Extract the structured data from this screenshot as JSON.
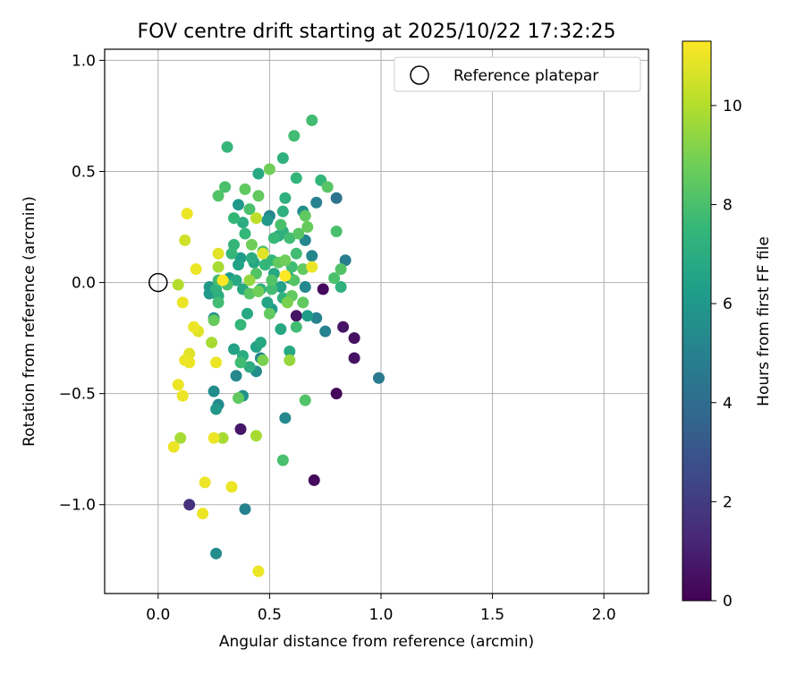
{
  "chart_data": {
    "type": "scatter",
    "title": "FOV centre drift starting at 2025/10/22 17:32:25",
    "xlabel": "Angular distance from reference (arcmin)",
    "ylabel": "Rotation from reference (arcmin)",
    "xlim": [
      -0.24,
      2.2
    ],
    "ylim": [
      -1.4,
      1.05
    ],
    "xticks": [
      0.0,
      0.5,
      1.0,
      1.5,
      2.0
    ],
    "xtick_labels": [
      "0.0",
      "0.5",
      "1.0",
      "1.5",
      "2.0"
    ],
    "yticks": [
      1.0,
      0.5,
      0.0,
      -0.5,
      -1.0
    ],
    "ytick_labels": [
      "1.0",
      "0.5",
      "0.0",
      "−0.5",
      "−1.0"
    ],
    "grid": true,
    "legend": {
      "placement": "top-right",
      "label": "Reference platepar"
    },
    "reference_point": {
      "x": 0.0,
      "y": 0.0
    },
    "colorbar": {
      "label": "Hours from first FF file",
      "min": 0,
      "max": 11.3,
      "ticks": [
        0,
        2,
        4,
        6,
        8,
        10
      ],
      "tick_labels": [
        "0",
        "2",
        "4",
        "6",
        "8",
        "10"
      ],
      "colormap": [
        "#440154",
        "#482878",
        "#3e4989",
        "#31688e",
        "#26828e",
        "#1f9e89",
        "#35b779",
        "#6ece58",
        "#b5de2b",
        "#fde725"
      ]
    },
    "points": [
      {
        "x": 0.69,
        "y": 0.73,
        "h": 7.8
      },
      {
        "x": 0.31,
        "y": 0.61,
        "h": 7.5
      },
      {
        "x": 0.61,
        "y": 0.66,
        "h": 7.8
      },
      {
        "x": 0.56,
        "y": 0.56,
        "h": 7.2
      },
      {
        "x": 0.45,
        "y": 0.49,
        "h": 6.8
      },
      {
        "x": 0.5,
        "y": 0.51,
        "h": 8.8
      },
      {
        "x": 0.62,
        "y": 0.47,
        "h": 7.4
      },
      {
        "x": 0.3,
        "y": 0.43,
        "h": 8.0
      },
      {
        "x": 0.27,
        "y": 0.39,
        "h": 8.2
      },
      {
        "x": 0.39,
        "y": 0.42,
        "h": 8.5
      },
      {
        "x": 0.45,
        "y": 0.39,
        "h": 8.5
      },
      {
        "x": 0.57,
        "y": 0.38,
        "h": 7.2
      },
      {
        "x": 0.73,
        "y": 0.46,
        "h": 7.5
      },
      {
        "x": 0.76,
        "y": 0.43,
        "h": 8.3
      },
      {
        "x": 0.8,
        "y": 0.38,
        "h": 4.3
      },
      {
        "x": 0.71,
        "y": 0.36,
        "h": 5.0
      },
      {
        "x": 0.36,
        "y": 0.35,
        "h": 6.0
      },
      {
        "x": 0.41,
        "y": 0.33,
        "h": 8.0
      },
      {
        "x": 0.34,
        "y": 0.29,
        "h": 7.5
      },
      {
        "x": 0.38,
        "y": 0.27,
        "h": 7.0
      },
      {
        "x": 0.44,
        "y": 0.29,
        "h": 10.2
      },
      {
        "x": 0.5,
        "y": 0.3,
        "h": 5.2
      },
      {
        "x": 0.49,
        "y": 0.28,
        "h": 6.0
      },
      {
        "x": 0.56,
        "y": 0.32,
        "h": 7.2
      },
      {
        "x": 0.65,
        "y": 0.32,
        "h": 5.6
      },
      {
        "x": 0.66,
        "y": 0.3,
        "h": 8.5
      },
      {
        "x": 0.55,
        "y": 0.26,
        "h": 8.0
      },
      {
        "x": 0.67,
        "y": 0.25,
        "h": 8.6
      },
      {
        "x": 0.39,
        "y": 0.22,
        "h": 7.5
      },
      {
        "x": 0.34,
        "y": 0.17,
        "h": 7.5
      },
      {
        "x": 0.42,
        "y": 0.17,
        "h": 8.8
      },
      {
        "x": 0.47,
        "y": 0.14,
        "h": 8.0
      },
      {
        "x": 0.56,
        "y": 0.23,
        "h": 7.2
      },
      {
        "x": 0.54,
        "y": 0.21,
        "h": 7.0
      },
      {
        "x": 0.59,
        "y": 0.2,
        "h": 7.8
      },
      {
        "x": 0.63,
        "y": 0.22,
        "h": 8.3
      },
      {
        "x": 0.66,
        "y": 0.19,
        "h": 5.2
      },
      {
        "x": 0.8,
        "y": 0.23,
        "h": 8.0
      },
      {
        "x": 0.33,
        "y": 0.13,
        "h": 7.5
      },
      {
        "x": 0.27,
        "y": 0.13,
        "h": 10.8
      },
      {
        "x": 0.47,
        "y": 0.13,
        "h": 10.8
      },
      {
        "x": 0.62,
        "y": 0.13,
        "h": 7.8
      },
      {
        "x": 0.69,
        "y": 0.12,
        "h": 5.2
      },
      {
        "x": 0.37,
        "y": 0.11,
        "h": 6.2
      },
      {
        "x": 0.42,
        "y": 0.11,
        "h": 7.0
      },
      {
        "x": 0.51,
        "y": 0.1,
        "h": 7.5
      },
      {
        "x": 0.43,
        "y": 0.09,
        "h": 6.8
      },
      {
        "x": 0.54,
        "y": 0.09,
        "h": 8.5
      },
      {
        "x": 0.57,
        "y": 0.1,
        "h": 8.8
      },
      {
        "x": 0.84,
        "y": 0.1,
        "h": 4.8
      },
      {
        "x": 0.27,
        "y": 0.07,
        "h": 9.8
      },
      {
        "x": 0.36,
        "y": 0.08,
        "h": 6.5
      },
      {
        "x": 0.48,
        "y": 0.08,
        "h": 7.5
      },
      {
        "x": 0.6,
        "y": 0.07,
        "h": 7.8
      },
      {
        "x": 0.65,
        "y": 0.06,
        "h": 8.5
      },
      {
        "x": 0.69,
        "y": 0.07,
        "h": 11.0
      },
      {
        "x": 0.82,
        "y": 0.06,
        "h": 8.2
      },
      {
        "x": 0.17,
        "y": 0.06,
        "h": 11.0
      },
      {
        "x": 0.44,
        "y": 0.04,
        "h": 8.2
      },
      {
        "x": 0.52,
        "y": 0.04,
        "h": 6.8
      },
      {
        "x": 0.57,
        "y": 0.03,
        "h": 11.3
      },
      {
        "x": 0.79,
        "y": 0.02,
        "h": 8.0
      },
      {
        "x": 0.29,
        "y": 0.01,
        "h": 11.3
      },
      {
        "x": 0.35,
        "y": 0.01,
        "h": 6.8
      },
      {
        "x": 0.32,
        "y": 0.02,
        "h": 6.2
      },
      {
        "x": 0.41,
        "y": 0.01,
        "h": 9.5
      },
      {
        "x": 0.51,
        "y": 0.01,
        "h": 8.2
      },
      {
        "x": 0.61,
        "y": 0.01,
        "h": 8.2
      },
      {
        "x": 0.09,
        "y": -0.01,
        "h": 10.0
      },
      {
        "x": 0.23,
        "y": -0.02,
        "h": 6.0
      },
      {
        "x": 0.26,
        "y": -0.03,
        "h": 7.2
      },
      {
        "x": 0.31,
        "y": -0.01,
        "h": 8.0
      },
      {
        "x": 0.38,
        "y": -0.03,
        "h": 6.8
      },
      {
        "x": 0.46,
        "y": -0.03,
        "h": 7.2
      },
      {
        "x": 0.51,
        "y": -0.03,
        "h": 7.8
      },
      {
        "x": 0.55,
        "y": -0.02,
        "h": 6.5
      },
      {
        "x": 0.66,
        "y": -0.02,
        "h": 5.3
      },
      {
        "x": 0.74,
        "y": -0.03,
        "h": 0.3
      },
      {
        "x": 0.82,
        "y": -0.02,
        "h": 7.2
      },
      {
        "x": 0.23,
        "y": -0.05,
        "h": 6.0
      },
      {
        "x": 0.27,
        "y": -0.06,
        "h": 7.0
      },
      {
        "x": 0.41,
        "y": -0.05,
        "h": 8.3
      },
      {
        "x": 0.45,
        "y": -0.04,
        "h": 8.8
      },
      {
        "x": 0.56,
        "y": -0.07,
        "h": 7.3
      },
      {
        "x": 0.6,
        "y": -0.06,
        "h": 8.5
      },
      {
        "x": 0.27,
        "y": -0.09,
        "h": 7.8
      },
      {
        "x": 0.49,
        "y": -0.09,
        "h": 6.6
      },
      {
        "x": 0.58,
        "y": -0.09,
        "h": 9.0
      },
      {
        "x": 0.65,
        "y": -0.09,
        "h": 8.5
      },
      {
        "x": 0.11,
        "y": -0.09,
        "h": 11.0
      },
      {
        "x": 0.51,
        "y": -0.12,
        "h": 6.2
      },
      {
        "x": 0.4,
        "y": -0.14,
        "h": 6.8
      },
      {
        "x": 0.5,
        "y": -0.14,
        "h": 8.5
      },
      {
        "x": 0.62,
        "y": -0.15,
        "h": 0.6
      },
      {
        "x": 0.67,
        "y": -0.15,
        "h": 6.2
      },
      {
        "x": 0.71,
        "y": -0.16,
        "h": 5.0
      },
      {
        "x": 0.25,
        "y": -0.16,
        "h": 5.5
      },
      {
        "x": 0.25,
        "y": -0.17,
        "h": 8.6
      },
      {
        "x": 0.37,
        "y": -0.19,
        "h": 7.5
      },
      {
        "x": 0.55,
        "y": -0.21,
        "h": 6.8
      },
      {
        "x": 0.62,
        "y": -0.2,
        "h": 7.8
      },
      {
        "x": 0.75,
        "y": -0.22,
        "h": 5.0
      },
      {
        "x": 0.83,
        "y": -0.2,
        "h": 0.6
      },
      {
        "x": 0.16,
        "y": -0.2,
        "h": 11.0
      },
      {
        "x": 0.18,
        "y": -0.22,
        "h": 10.8
      },
      {
        "x": 0.88,
        "y": -0.25,
        "h": 0.5
      },
      {
        "x": 0.24,
        "y": -0.27,
        "h": 9.8
      },
      {
        "x": 0.46,
        "y": -0.27,
        "h": 6.8
      },
      {
        "x": 0.44,
        "y": -0.29,
        "h": 6.5
      },
      {
        "x": 0.34,
        "y": -0.3,
        "h": 6.5
      },
      {
        "x": 0.59,
        "y": -0.31,
        "h": 6.8
      },
      {
        "x": 0.14,
        "y": -0.32,
        "h": 10.8
      },
      {
        "x": 0.88,
        "y": -0.34,
        "h": 0.5
      },
      {
        "x": 0.38,
        "y": -0.33,
        "h": 7.0
      },
      {
        "x": 0.46,
        "y": -0.34,
        "h": 5.2
      },
      {
        "x": 0.12,
        "y": -0.35,
        "h": 11.0
      },
      {
        "x": 0.26,
        "y": -0.36,
        "h": 11.0
      },
      {
        "x": 0.37,
        "y": -0.36,
        "h": 7.8
      },
      {
        "x": 0.47,
        "y": -0.35,
        "h": 9.0
      },
      {
        "x": 0.59,
        "y": -0.35,
        "h": 9.5
      },
      {
        "x": 0.14,
        "y": -0.36,
        "h": 11.0
      },
      {
        "x": 0.41,
        "y": -0.38,
        "h": 7.0
      },
      {
        "x": 0.44,
        "y": -0.4,
        "h": 5.5
      },
      {
        "x": 0.35,
        "y": -0.42,
        "h": 5.3
      },
      {
        "x": 0.99,
        "y": -0.43,
        "h": 4.6
      },
      {
        "x": 0.09,
        "y": -0.46,
        "h": 11.0
      },
      {
        "x": 0.25,
        "y": -0.49,
        "h": 5.5
      },
      {
        "x": 0.11,
        "y": -0.51,
        "h": 11.0
      },
      {
        "x": 0.38,
        "y": -0.51,
        "h": 5.8
      },
      {
        "x": 0.36,
        "y": -0.52,
        "h": 8.5
      },
      {
        "x": 0.66,
        "y": -0.53,
        "h": 8.2
      },
      {
        "x": 0.8,
        "y": -0.5,
        "h": 0.2
      },
      {
        "x": 0.27,
        "y": -0.55,
        "h": 5.3
      },
      {
        "x": 0.26,
        "y": -0.57,
        "h": 6.0
      },
      {
        "x": 0.57,
        "y": -0.61,
        "h": 5.3
      },
      {
        "x": 0.37,
        "y": -0.66,
        "h": 0.7
      },
      {
        "x": 0.44,
        "y": -0.69,
        "h": 9.8
      },
      {
        "x": 0.1,
        "y": -0.7,
        "h": 9.8
      },
      {
        "x": 0.25,
        "y": -0.7,
        "h": 11.0
      },
      {
        "x": 0.29,
        "y": -0.7,
        "h": 9.8
      },
      {
        "x": 0.07,
        "y": -0.74,
        "h": 11.0
      },
      {
        "x": 0.56,
        "y": -0.8,
        "h": 8.0
      },
      {
        "x": 0.7,
        "y": -0.89,
        "h": 0.3
      },
      {
        "x": 0.21,
        "y": -0.9,
        "h": 11.0
      },
      {
        "x": 0.33,
        "y": -0.92,
        "h": 11.0
      },
      {
        "x": 0.14,
        "y": -1.0,
        "h": 1.6
      },
      {
        "x": 0.2,
        "y": -1.04,
        "h": 11.0
      },
      {
        "x": 0.39,
        "y": -1.02,
        "h": 5.0
      },
      {
        "x": 0.26,
        "y": -1.22,
        "h": 5.5
      },
      {
        "x": 0.45,
        "y": -1.3,
        "h": 11.0
      },
      {
        "x": 0.13,
        "y": 0.31,
        "h": 11.0
      },
      {
        "x": 0.12,
        "y": 0.19,
        "h": 10.5
      },
      {
        "x": 0.27,
        "y": 0.01,
        "h": 7.8
      },
      {
        "x": 0.52,
        "y": 0.2,
        "h": 7.6
      },
      {
        "x": 0.59,
        "y": 0.02,
        "h": 6.2
      }
    ]
  }
}
